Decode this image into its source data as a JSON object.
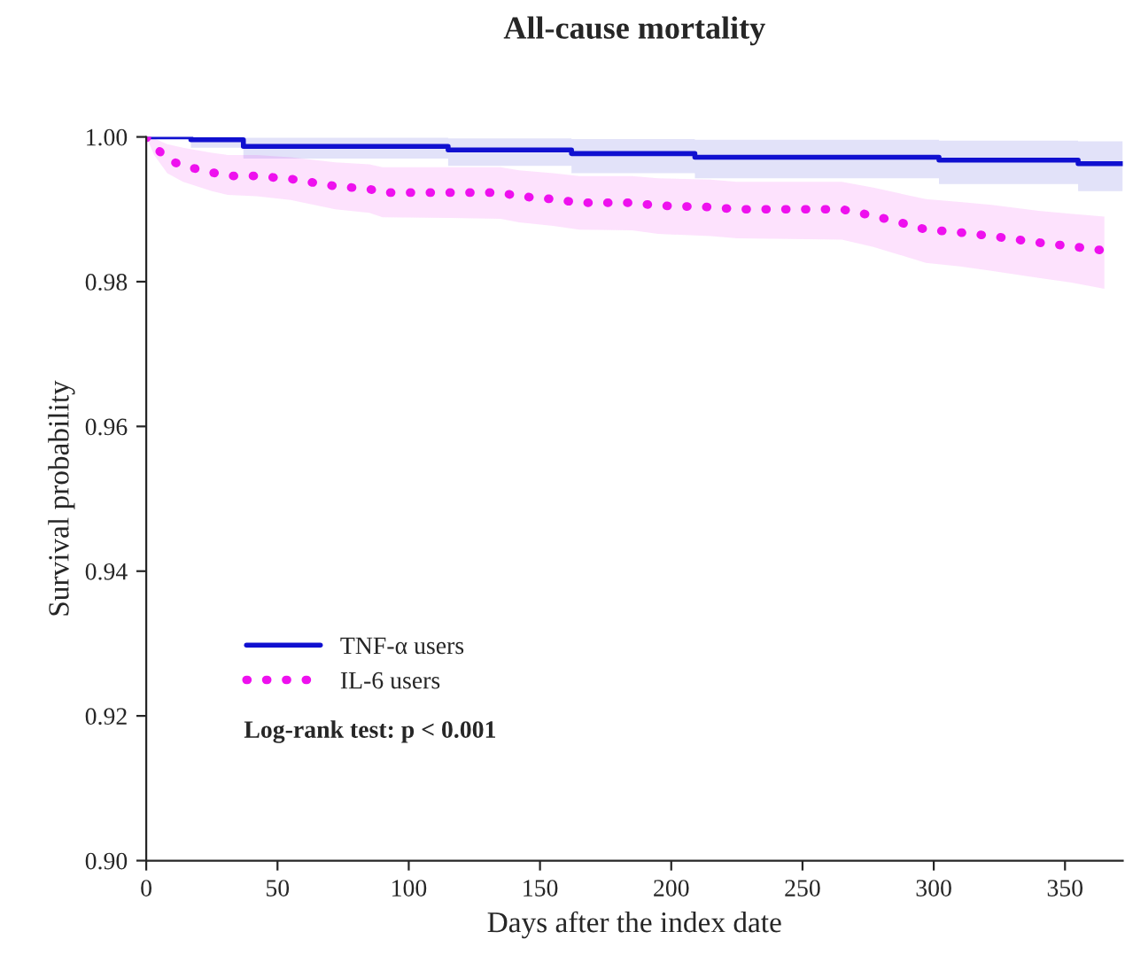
{
  "chart_data": {
    "type": "line",
    "title": "All-cause mortality",
    "xlabel": "Days after the index date",
    "ylabel": "Survival probability",
    "xlim": [
      0,
      372
    ],
    "ylim": [
      0.9,
      1.0
    ],
    "xticks": [
      0,
      50,
      100,
      150,
      200,
      250,
      300,
      350
    ],
    "yticks": [
      {
        "value": 0.9,
        "label": "0.90"
      },
      {
        "value": 0.92,
        "label": "0.92"
      },
      {
        "value": 0.94,
        "label": "0.94"
      },
      {
        "value": 0.96,
        "label": "0.96"
      },
      {
        "value": 0.98,
        "label": "0.98"
      },
      {
        "value": 1.0,
        "label": "1.00"
      }
    ],
    "grid": false,
    "legend": "bottom left",
    "marker": "none",
    "annotations": [
      "Log-rank test: p < 0.001"
    ],
    "series": [
      {
        "name": "TNF-α users",
        "type": "step",
        "color": "#1010d0",
        "line_style": "solid",
        "x": [
          0,
          17,
          37,
          115,
          162,
          209,
          302,
          355,
          372
        ],
        "values": [
          1.0,
          0.9996,
          0.9987,
          0.9982,
          0.9977,
          0.9972,
          0.9968,
          0.9963,
          0.9963
        ],
        "upper": [
          1.0,
          1.0,
          0.9999,
          0.9998,
          0.9997,
          0.9996,
          0.9995,
          0.9994,
          0.9994
        ],
        "lower": [
          1.0,
          0.9985,
          0.997,
          0.996,
          0.995,
          0.9943,
          0.9935,
          0.9925,
          0.9923
        ]
      },
      {
        "name": "IL-6 users",
        "color": "#ee10ee",
        "line_style": "dotted",
        "x": [
          0,
          3,
          8,
          14,
          25,
          31,
          42,
          55,
          72,
          85,
          90,
          115,
          135,
          142,
          155,
          165,
          185,
          195,
          215,
          225,
          265,
          277,
          287,
          297,
          310,
          322,
          340,
          352,
          365
        ],
        "values": [
          1.0,
          0.9988,
          0.9969,
          0.996,
          0.9951,
          0.9946,
          0.9946,
          0.9942,
          0.9932,
          0.9928,
          0.9923,
          0.9923,
          0.9923,
          0.9918,
          0.9914,
          0.9909,
          0.9909,
          0.9905,
          0.9903,
          0.99,
          0.99,
          0.9891,
          0.9882,
          0.9872,
          0.9868,
          0.9863,
          0.9854,
          0.9849,
          0.9843
        ],
        "upper": [
          1.0,
          0.9998,
          0.999,
          0.9985,
          0.9978,
          0.9975,
          0.9975,
          0.9972,
          0.9965,
          0.9962,
          0.9958,
          0.9958,
          0.9958,
          0.9954,
          0.995,
          0.9946,
          0.9946,
          0.9943,
          0.9941,
          0.9938,
          0.9938,
          0.993,
          0.9922,
          0.9914,
          0.991,
          0.9906,
          0.9898,
          0.9894,
          0.989
        ],
        "lower": [
          1.0,
          0.9975,
          0.995,
          0.9938,
          0.9925,
          0.992,
          0.9918,
          0.9913,
          0.99,
          0.9895,
          0.9889,
          0.9888,
          0.9887,
          0.9882,
          0.9877,
          0.9872,
          0.9871,
          0.9866,
          0.9863,
          0.986,
          0.9858,
          0.9848,
          0.9837,
          0.9826,
          0.9821,
          0.9815,
          0.9805,
          0.9799,
          0.979
        ]
      }
    ]
  }
}
